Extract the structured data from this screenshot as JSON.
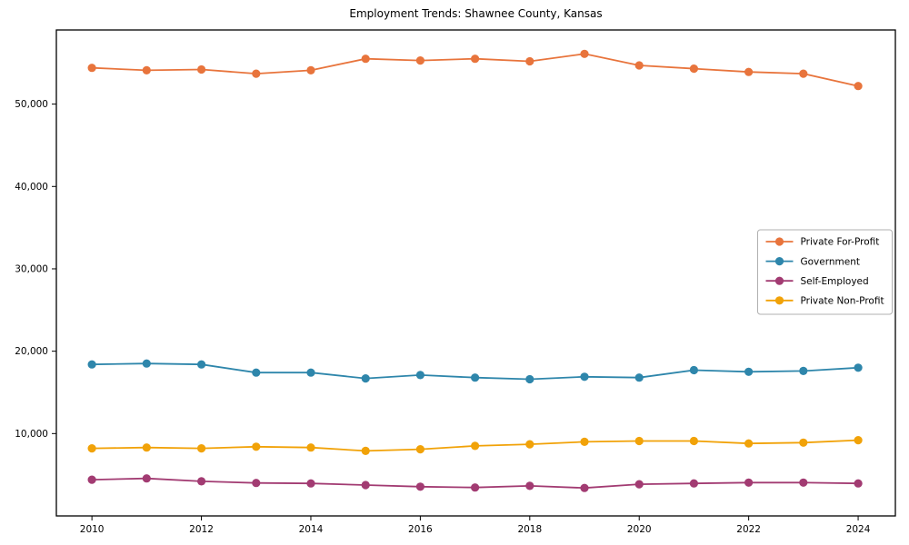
{
  "figure": {
    "background": "#ffffff",
    "frame_color": "#000000"
  },
  "chart_data": {
    "type": "line",
    "title": "Employment Trends: Shawnee County, Kansas",
    "xlabel": "",
    "ylabel": "",
    "grid": false,
    "legend_position": "center-right",
    "x": [
      2010,
      2011,
      2012,
      2013,
      2014,
      2015,
      2016,
      2017,
      2018,
      2019,
      2020,
      2021,
      2022,
      2023,
      2024
    ],
    "series": [
      {
        "name": "Private For-Profit",
        "color": "#E8743C",
        "values": [
          54400,
          54100,
          54200,
          53700,
          54100,
          55500,
          55300,
          55500,
          55200,
          56100,
          54700,
          54300,
          53900,
          53700,
          52200
        ]
      },
      {
        "name": "Government",
        "color": "#2E86AB",
        "values": [
          18400,
          18500,
          18400,
          17400,
          17400,
          16700,
          17100,
          16800,
          16600,
          16900,
          16800,
          17700,
          17500,
          17600,
          18000
        ]
      },
      {
        "name": "Self-Employed",
        "color": "#A23B72",
        "values": [
          4400,
          4550,
          4200,
          4000,
          3950,
          3750,
          3550,
          3450,
          3650,
          3400,
          3850,
          3950,
          4050,
          4050,
          3950
        ]
      },
      {
        "name": "Private Non-Profit",
        "color": "#F1A208",
        "values": [
          8200,
          8300,
          8200,
          8400,
          8300,
          7900,
          8100,
          8500,
          8700,
          9000,
          9100,
          9100,
          8800,
          8900,
          9200
        ]
      }
    ],
    "xlim": [
      2009.35,
      2024.68
    ],
    "ylim": [
      0,
      59000
    ],
    "xticks": [
      2010,
      2012,
      2014,
      2016,
      2018,
      2020,
      2022,
      2024
    ],
    "xtick_labels": [
      "2010",
      "2012",
      "2014",
      "2016",
      "2018",
      "2020",
      "2022",
      "2024"
    ],
    "yticks": [
      10000,
      20000,
      30000,
      40000,
      50000
    ],
    "ytick_labels": [
      "10,000",
      "20,000",
      "30,000",
      "40,000",
      "50,000"
    ]
  }
}
